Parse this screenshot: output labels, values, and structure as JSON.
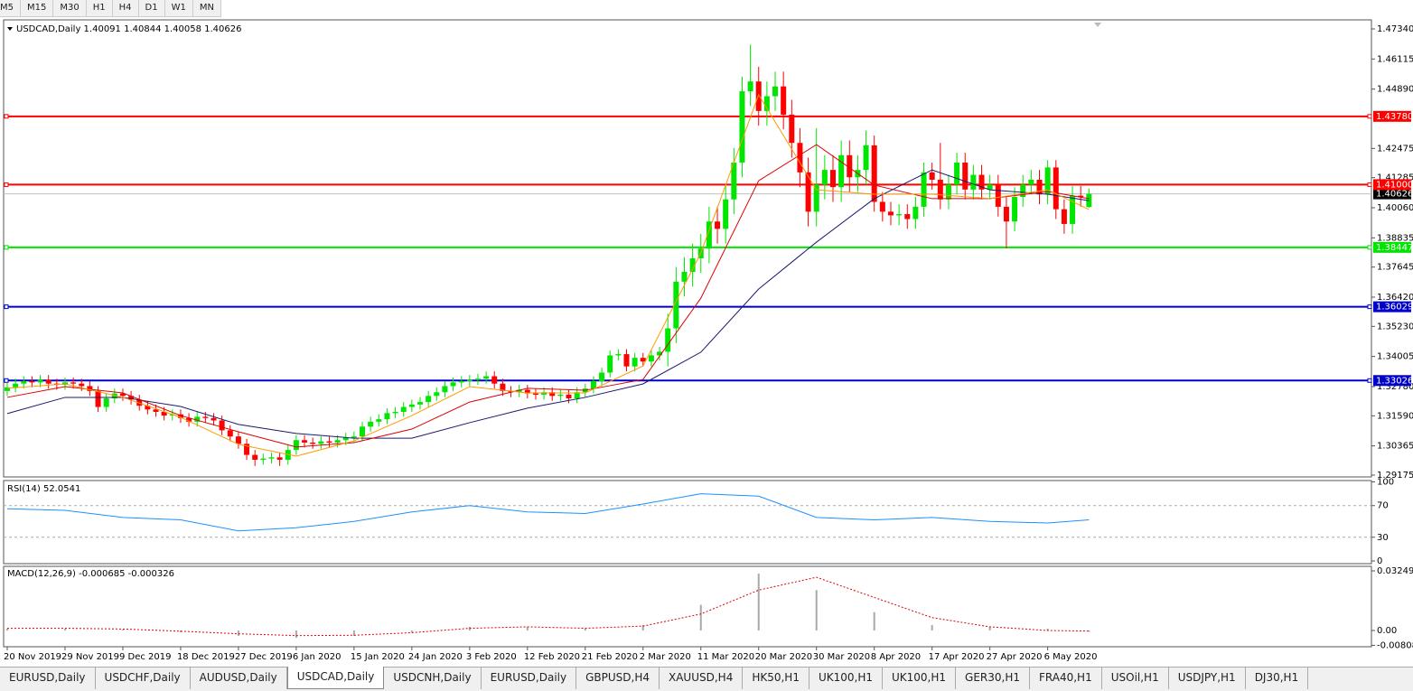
{
  "timeframes": [
    "M5",
    "M15",
    "M30",
    "H1",
    "H4",
    "D1",
    "W1",
    "MN"
  ],
  "tabs": [
    "EURUSD,Daily",
    "USDCHF,Daily",
    "AUDUSD,Daily",
    "USDCAD,Daily",
    "USDCNH,Daily",
    "EURUSD,Daily",
    "GBPUSD,H4",
    "XAUUSD,H4",
    "HK50,H1",
    "UK100,H1",
    "UK100,H1",
    "GER30,H1",
    "FRA40,H1",
    "USOil,H1",
    "USDJPY,H1",
    "DJ30,H1"
  ],
  "active_tab": 3,
  "chart_data": {
    "type": "candlestick",
    "header": "USDCAD,Daily  1.40091 1.40844 1.40058 1.40626",
    "categories": [
      "20 Nov 2019",
      null,
      null,
      null,
      null,
      null,
      null,
      "29 Nov 2019",
      null,
      null,
      null,
      null,
      null,
      null,
      "9 Dec 2019",
      null,
      null,
      null,
      null,
      null,
      null,
      "18 Dec 2019",
      null,
      null,
      null,
      null,
      null,
      null,
      "27 Dec 2019",
      null,
      null,
      null,
      null,
      null,
      null,
      "6 Jan 2020",
      null,
      null,
      null,
      null,
      null,
      null,
      "15 Jan 2020",
      null,
      null,
      null,
      null,
      null,
      null,
      "24 Jan 2020",
      null,
      null,
      null,
      null,
      null,
      null,
      "3 Feb 2020",
      null,
      null,
      null,
      null,
      null,
      null,
      "12 Feb 2020",
      null,
      null,
      null,
      null,
      null,
      null,
      "21 Feb 2020",
      null,
      null,
      null,
      null,
      null,
      null,
      "2 Mar 2020",
      null,
      null,
      null,
      null,
      null,
      null,
      "11 Mar 2020",
      null,
      null,
      null,
      null,
      null,
      null,
      "20 Mar 2020",
      null,
      null,
      null,
      null,
      null,
      null,
      "30 Mar 2020",
      null,
      null,
      null,
      null,
      null,
      null,
      "8 Apr 2020",
      null,
      null,
      null,
      null,
      null,
      null,
      "17 Apr 2020",
      null,
      null,
      null,
      null,
      null,
      null,
      "27 Apr 2020",
      null,
      null,
      null,
      null,
      null,
      null,
      "6 May 2020",
      null,
      null,
      null,
      null,
      null
    ],
    "open": [
      1.326,
      1.3275,
      1.329,
      1.33,
      1.3295,
      1.3305,
      1.329,
      1.3285,
      1.3295,
      1.329,
      1.328,
      1.326,
      1.3195,
      1.323,
      1.325,
      1.324,
      1.3225,
      1.32,
      1.3185,
      1.3175,
      1.316,
      1.3165,
      1.315,
      1.3135,
      1.3155,
      1.315,
      1.314,
      1.31,
      1.3075,
      1.3045,
      1.3,
      1.298,
      1.2985,
      1.299,
      1.298,
      1.302,
      1.306,
      1.305,
      1.3045,
      1.3055,
      1.305,
      1.306,
      1.307,
      1.3075,
      1.3115,
      1.3135,
      1.3145,
      1.317,
      1.3175,
      1.3195,
      1.3205,
      1.3215,
      1.324,
      1.3255,
      1.328,
      1.3295,
      1.33,
      1.3305,
      1.331,
      1.332,
      1.329,
      1.326,
      1.3255,
      1.3265,
      1.325,
      1.3245,
      1.3255,
      1.324,
      1.3245,
      1.323,
      1.3255,
      1.327,
      1.33,
      1.3335,
      1.3405,
      1.341,
      1.336,
      1.3395,
      1.338,
      1.3405,
      1.342,
      1.3515,
      1.3705,
      1.3745,
      1.38,
      1.384,
      1.395,
      1.392,
      1.404,
      1.419,
      1.448,
      1.452,
      1.44,
      1.446,
      1.45,
      1.4385,
      1.427,
      1.415,
      1.399,
      1.41,
      1.416,
      1.409,
      1.422,
      1.413,
      1.416,
      1.426,
      1.403,
      1.399,
      1.3975,
      1.398,
      1.396,
      1.401,
      1.415,
      1.412,
      1.404,
      1.41,
      1.419,
      1.408,
      1.414,
      1.408,
      1.41,
      1.401,
      1.395,
      1.405,
      1.41,
      1.412,
      1.406,
      1.417,
      1.4,
      1.394,
      1.4055,
      1.40091
    ],
    "high": [
      1.3295,
      1.331,
      1.332,
      1.332,
      1.3325,
      1.3325,
      1.331,
      1.3315,
      1.3315,
      1.331,
      1.33,
      1.328,
      1.325,
      1.327,
      1.327,
      1.326,
      1.3245,
      1.322,
      1.3205,
      1.3195,
      1.3185,
      1.3185,
      1.317,
      1.3175,
      1.3175,
      1.317,
      1.316,
      1.312,
      1.3095,
      1.3065,
      1.302,
      1.3005,
      1.301,
      1.301,
      1.304,
      1.308,
      1.308,
      1.307,
      1.3075,
      1.3075,
      1.308,
      1.309,
      1.3095,
      1.3135,
      1.3155,
      1.3165,
      1.319,
      1.3195,
      1.3215,
      1.3225,
      1.3235,
      1.326,
      1.3275,
      1.33,
      1.3315,
      1.332,
      1.3325,
      1.333,
      1.334,
      1.334,
      1.331,
      1.328,
      1.3285,
      1.3285,
      1.327,
      1.3275,
      1.3275,
      1.3265,
      1.3265,
      1.3275,
      1.329,
      1.332,
      1.3355,
      1.3425,
      1.343,
      1.343,
      1.3415,
      1.3415,
      1.3425,
      1.344,
      1.3575,
      1.3765,
      1.3805,
      1.386,
      1.39,
      1.401,
      1.401,
      1.41,
      1.425,
      1.454,
      1.467,
      1.458,
      1.452,
      1.456,
      1.456,
      1.4445,
      1.433,
      1.421,
      1.433,
      1.422,
      1.422,
      1.428,
      1.428,
      1.422,
      1.432,
      1.43,
      1.407,
      1.403,
      1.402,
      1.402,
      1.405,
      1.419,
      1.419,
      1.427,
      1.414,
      1.423,
      1.423,
      1.418,
      1.418,
      1.414,
      1.414,
      1.405,
      1.409,
      1.414,
      1.416,
      1.416,
      1.42,
      1.42,
      1.404,
      1.4095,
      1.4095,
      1.40844
    ],
    "low": [
      1.324,
      1.3255,
      1.327,
      1.3275,
      1.3275,
      1.327,
      1.3265,
      1.3265,
      1.327,
      1.326,
      1.324,
      1.3175,
      1.3175,
      1.321,
      1.322,
      1.3205,
      1.318,
      1.3165,
      1.3155,
      1.314,
      1.314,
      1.313,
      1.3115,
      1.3115,
      1.313,
      1.312,
      1.308,
      1.3055,
      1.3025,
      1.298,
      1.2955,
      1.296,
      1.2965,
      1.2955,
      1.296,
      1.3,
      1.303,
      1.3025,
      1.3025,
      1.303,
      1.303,
      1.304,
      1.305,
      1.3055,
      1.3095,
      1.3115,
      1.3125,
      1.315,
      1.3155,
      1.3175,
      1.3185,
      1.3195,
      1.322,
      1.3235,
      1.326,
      1.3275,
      1.328,
      1.3285,
      1.329,
      1.327,
      1.324,
      1.3235,
      1.3235,
      1.323,
      1.3225,
      1.3225,
      1.322,
      1.322,
      1.321,
      1.321,
      1.3235,
      1.325,
      1.328,
      1.3315,
      1.3385,
      1.334,
      1.334,
      1.336,
      1.336,
      1.3385,
      1.336,
      1.3455,
      1.3645,
      1.3685,
      1.374,
      1.378,
      1.386,
      1.386,
      1.398,
      1.413,
      1.442,
      1.434,
      1.434,
      1.44,
      1.4325,
      1.421,
      1.409,
      1.393,
      1.393,
      1.404,
      1.403,
      1.403,
      1.407,
      1.407,
      1.41,
      1.399,
      1.395,
      1.3935,
      1.3935,
      1.392,
      1.392,
      1.397,
      1.408,
      1.4,
      1.4,
      1.406,
      1.404,
      1.404,
      1.404,
      1.404,
      1.397,
      1.384,
      1.391,
      1.401,
      1.406,
      1.402,
      1.402,
      1.396,
      1.39,
      1.39,
      1.401,
      1.40058
    ],
    "close": [
      1.3275,
      1.329,
      1.33,
      1.3295,
      1.3305,
      1.329,
      1.3285,
      1.3295,
      1.329,
      1.328,
      1.326,
      1.3195,
      1.323,
      1.325,
      1.324,
      1.3225,
      1.32,
      1.3185,
      1.3175,
      1.316,
      1.3165,
      1.315,
      1.3135,
      1.3155,
      1.315,
      1.314,
      1.31,
      1.3075,
      1.3045,
      1.3,
      1.298,
      1.2985,
      1.299,
      1.298,
      1.302,
      1.306,
      1.305,
      1.3045,
      1.3055,
      1.305,
      1.306,
      1.307,
      1.3075,
      1.3115,
      1.3135,
      1.3145,
      1.317,
      1.3175,
      1.3195,
      1.3205,
      1.3215,
      1.324,
      1.3255,
      1.328,
      1.3295,
      1.33,
      1.3305,
      1.331,
      1.332,
      1.329,
      1.326,
      1.3255,
      1.3265,
      1.325,
      1.3245,
      1.3255,
      1.324,
      1.3245,
      1.323,
      1.3255,
      1.327,
      1.33,
      1.3335,
      1.3405,
      1.341,
      1.336,
      1.3395,
      1.338,
      1.3405,
      1.342,
      1.3515,
      1.3705,
      1.3745,
      1.38,
      1.384,
      1.395,
      1.392,
      1.404,
      1.419,
      1.448,
      1.452,
      1.44,
      1.446,
      1.45,
      1.4385,
      1.427,
      1.415,
      1.399,
      1.41,
      1.416,
      1.409,
      1.422,
      1.413,
      1.416,
      1.426,
      1.403,
      1.399,
      1.3975,
      1.398,
      1.396,
      1.401,
      1.415,
      1.412,
      1.404,
      1.41,
      1.419,
      1.408,
      1.414,
      1.408,
      1.41,
      1.401,
      1.395,
      1.405,
      1.41,
      1.412,
      1.406,
      1.417,
      1.4,
      1.394,
      1.4055,
      1.405,
      1.40626
    ],
    "up_color": "#00e600",
    "down_color": "#ff0000",
    "ylim": [
      1.29102,
      1.47708
    ],
    "yticks": [
      {
        "value": 1.4734,
        "label": "1.47340"
      },
      1.46115,
      {
        "value": 1.4489,
        "label": "1.44890"
      },
      1.42475,
      1.41285,
      {
        "value": 1.4006,
        "label": "1.40060"
      },
      1.38835,
      1.37645,
      {
        "value": 1.3642,
        "label": "1.36420"
      },
      {
        "value": 1.3523,
        "label": "1.35230"
      },
      1.34005,
      {
        "value": 1.3278,
        "label": "1.32780"
      },
      {
        "value": 1.3159,
        "label": "1.31590"
      },
      1.30365,
      1.29175
    ],
    "levels": [
      {
        "price": {
          "value": 1.4378,
          "label": "1.43780"
        },
        "color": "#ff0000"
      },
      {
        "price": {
          "value": 1.41,
          "label": "1.41000"
        },
        "color": "#ff0000"
      },
      {
        "price": 1.38447,
        "color": "#00e600"
      },
      {
        "price": 1.36029,
        "color": "#0000cc"
      },
      {
        "price": 1.33026,
        "color": "#0000cc"
      }
    ],
    "last_price": 1.40626,
    "ma_x": [
      0,
      7,
      14,
      21,
      28,
      35,
      42,
      49,
      56,
      63,
      70,
      77,
      84,
      91,
      98,
      105,
      112,
      119,
      126,
      131
    ],
    "moving_averages": [
      {
        "color": "#191970",
        "values": [
          1.3168,
          1.3234,
          1.3234,
          1.3197,
          1.3124,
          1.3087,
          1.3068,
          1.3068,
          1.3131,
          1.319,
          1.3234,
          1.3289,
          1.3418,
          1.3675,
          1.3866,
          1.4043,
          1.416,
          1.4079,
          1.4061,
          1.4035
        ]
      },
      {
        "color": "#dd0000",
        "values": [
          1.3234,
          1.3278,
          1.3252,
          1.316,
          1.3094,
          1.3032,
          1.305,
          1.3105,
          1.3215,
          1.3271,
          1.3263,
          1.3307,
          1.3638,
          1.4116,
          1.4263,
          1.4098,
          1.4043,
          1.4043,
          1.4072,
          1.4043
        ]
      },
      {
        "color": "#ff9900",
        "values": [
          1.3271,
          1.3289,
          1.3234,
          1.3153,
          1.3043,
          1.2995,
          1.3057,
          1.316,
          1.3278,
          1.3252,
          1.3252,
          1.3362,
          1.3822,
          1.4466,
          1.4079,
          1.4061,
          1.4061,
          1.4043,
          1.4079,
          1.3999
        ]
      }
    ],
    "rsi": {
      "label": "RSI(14) 52.0541",
      "color": "#1e90ff",
      "ylim": [
        -3.4,
        101.7
      ],
      "yticks": [
        0,
        30,
        70,
        100
      ],
      "levels": [
        30,
        70
      ],
      "values": [
        66,
        64,
        55,
        52,
        38,
        42,
        50,
        62,
        70,
        62,
        60,
        72,
        85,
        82,
        55,
        52,
        55,
        50,
        48,
        52
      ]
    },
    "macd": {
      "label": "MACD(12,26,9) -0.000685 -0.000326",
      "ylim": [
        -0.00886,
        0.03495
      ],
      "yticks": [
        0.032493,
        {
          "value": 0,
          "label": "0.00"
        },
        -0.008086
      ],
      "histogram": [
        0.001,
        0.001,
        0.0005,
        -0.001,
        -0.003,
        -0.004,
        -0.003,
        -0.001,
        0.002,
        0.002,
        0.001,
        0.003,
        0.014,
        0.031,
        0.022,
        0.01,
        0.003,
        0.002,
        0.001,
        -0.0007
      ],
      "signal": [
        0.0012,
        0.0012,
        0.0008,
        -0.0004,
        -0.0018,
        -0.0028,
        -0.0026,
        -0.0012,
        0.0012,
        0.002,
        0.0012,
        0.0024,
        0.009,
        0.022,
        0.029,
        0.018,
        0.007,
        0.002,
        0,
        -0.0003
      ],
      "hist_color": "#a9a9a9",
      "signal_color": "#dd0000"
    }
  }
}
